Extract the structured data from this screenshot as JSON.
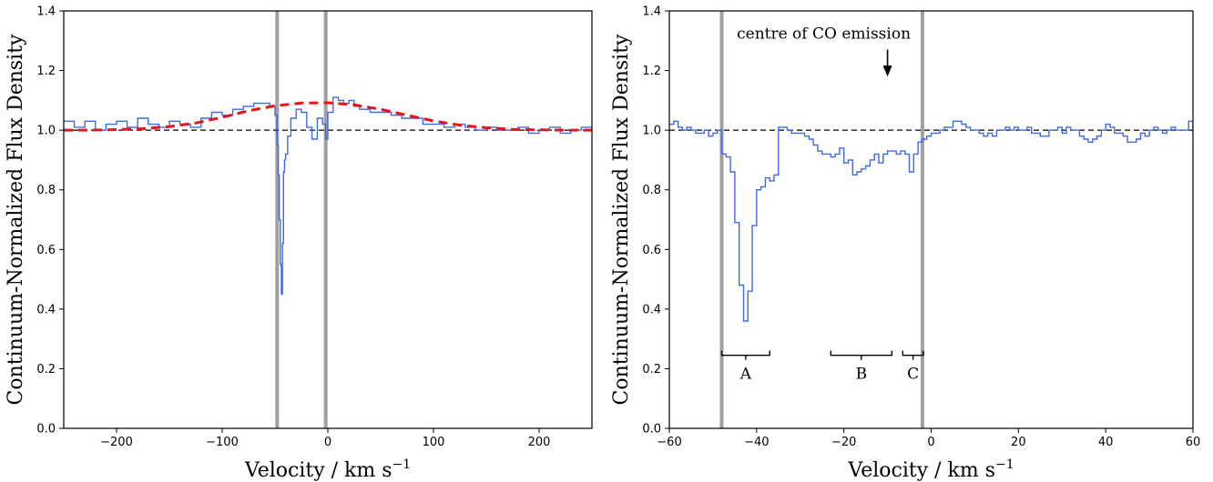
{
  "chart_data": [
    {
      "type": "line",
      "xlabel": "Velocity / km s",
      "xlabel_sup": "−1",
      "ylabel": "Continuum-Normalized Flux Density",
      "xlim": [
        -250,
        250
      ],
      "ylim": [
        0.0,
        1.4
      ],
      "xticks": [
        -200,
        -100,
        0,
        100,
        200
      ],
      "xtick_labels": [
        "−200",
        "−100",
        "0",
        "100",
        "200"
      ],
      "yticks": [
        0.0,
        0.2,
        0.4,
        0.6,
        0.8,
        1.0,
        1.2,
        1.4
      ],
      "ytick_labels": [
        "0.0",
        "0.2",
        "0.4",
        "0.6",
        "0.8",
        "1.0",
        "1.2",
        "1.4"
      ],
      "grid": false,
      "colors": {
        "spectrum": "#4169e1",
        "fit": "#e8141c",
        "reference": "#000000",
        "vertical_lines": "#a0a0a0"
      },
      "continuum_level": 1.0,
      "vertical_lines": [
        -48,
        -2
      ],
      "series": [
        {
          "style": "step",
          "x": [
            -250,
            -240,
            -230,
            -220,
            -210,
            -200,
            -190,
            -180,
            -170,
            -160,
            -150,
            -140,
            -130,
            -120,
            -110,
            -100,
            -90,
            -80,
            -70,
            -60,
            -55,
            -50,
            -48,
            -47,
            -46,
            -45,
            -44,
            -43,
            -42,
            -41,
            -40,
            -38,
            -35,
            -30,
            -25,
            -20,
            -15,
            -10,
            -5,
            -2,
            0,
            5,
            10,
            15,
            20,
            25,
            30,
            40,
            50,
            60,
            70,
            80,
            90,
            100,
            110,
            120,
            130,
            140,
            150,
            160,
            170,
            180,
            190,
            200,
            210,
            220,
            230,
            240,
            250
          ],
          "y": [
            1.03,
            1.01,
            1.03,
            1.0,
            1.02,
            1.03,
            1.01,
            1.04,
            1.02,
            1.01,
            1.03,
            1.02,
            1.01,
            1.04,
            1.06,
            1.05,
            1.07,
            1.08,
            1.09,
            1.09,
            1.08,
            1.05,
            0.95,
            0.85,
            0.7,
            0.55,
            0.45,
            0.62,
            0.86,
            0.9,
            0.92,
            0.98,
            1.04,
            1.07,
            1.06,
            1.01,
            0.97,
            1.04,
            1.02,
            0.97,
            1.06,
            1.11,
            1.1,
            1.09,
            1.1,
            1.08,
            1.07,
            1.06,
            1.06,
            1.05,
            1.04,
            1.04,
            1.02,
            1.02,
            1.01,
            1.02,
            1.01,
            1.0,
            1.01,
            1.0,
            1.0,
            1.01,
            0.99,
            1.0,
            1.01,
            0.99,
            1.0,
            1.01,
            1.0
          ]
        },
        {
          "style": "dashed",
          "x": [
            -250,
            -225,
            -200,
            -175,
            -150,
            -125,
            -100,
            -75,
            -50,
            -25,
            0,
            25,
            50,
            75,
            100,
            125,
            150,
            175,
            200,
            225,
            250
          ],
          "y": [
            1.0,
            1.0,
            1.002,
            1.005,
            1.012,
            1.024,
            1.043,
            1.065,
            1.082,
            1.091,
            1.092,
            1.085,
            1.07,
            1.05,
            1.031,
            1.017,
            1.008,
            1.003,
            1.001,
            1.0,
            1.0
          ]
        }
      ]
    },
    {
      "type": "line",
      "xlabel": "Velocity / km s",
      "xlabel_sup": "−1",
      "ylabel": "Continuum-Normalized Flux Density",
      "xlim": [
        -60,
        60
      ],
      "ylim": [
        0.0,
        1.4
      ],
      "xticks": [
        -60,
        -40,
        -20,
        0,
        20,
        40,
        60
      ],
      "xtick_labels": [
        "−60",
        "−40",
        "−20",
        "0",
        "20",
        "40",
        "60"
      ],
      "yticks": [
        0.0,
        0.2,
        0.4,
        0.6,
        0.8,
        1.0,
        1.2,
        1.4
      ],
      "ytick_labels": [
        "0.0",
        "0.2",
        "0.4",
        "0.6",
        "0.8",
        "1.0",
        "1.2",
        "1.4"
      ],
      "grid": false,
      "continuum_level": 1.0,
      "vertical_lines": [
        -48,
        -2
      ],
      "annotation": {
        "text": "centre of CO emission",
        "arrow_x": -10,
        "arrow_from_y": 1.27,
        "arrow_to_y": 1.18
      },
      "regions": [
        {
          "label": "A",
          "x0": -48,
          "x1": -37,
          "y": 0.245
        },
        {
          "label": "B",
          "x0": -23,
          "x1": -9,
          "y": 0.245
        },
        {
          "label": "C",
          "x0": -6.5,
          "x1": -1.8,
          "y": 0.245
        }
      ],
      "series": [
        {
          "style": "step",
          "x": [
            -60,
            -59,
            -58,
            -57,
            -56,
            -55,
            -54,
            -53,
            -52,
            -51,
            -50,
            -49,
            -48,
            -47,
            -46,
            -45,
            -44,
            -43,
            -42,
            -41,
            -40,
            -39,
            -38,
            -37,
            -36,
            -35,
            -34,
            -33,
            -32,
            -31,
            -30,
            -29,
            -28,
            -27,
            -26,
            -25,
            -24,
            -23,
            -22,
            -21,
            -20,
            -19,
            -18,
            -17,
            -16,
            -15,
            -14,
            -13,
            -12,
            -11,
            -10,
            -9,
            -8,
            -7,
            -6,
            -5,
            -4,
            -3,
            -2,
            -1,
            0,
            1,
            2,
            3,
            4,
            5,
            6,
            7,
            8,
            9,
            10,
            11,
            12,
            13,
            14,
            15,
            16,
            17,
            18,
            19,
            20,
            21,
            22,
            23,
            24,
            25,
            26,
            27,
            28,
            29,
            30,
            31,
            32,
            33,
            34,
            35,
            36,
            37,
            38,
            39,
            40,
            41,
            42,
            43,
            44,
            45,
            46,
            47,
            48,
            49,
            50,
            51,
            52,
            53,
            54,
            55,
            56,
            57,
            58,
            59,
            60
          ],
          "y": [
            1.02,
            1.03,
            1.01,
            1.0,
            1.01,
            1.0,
            0.99,
            0.99,
            1.0,
            0.98,
            0.99,
            1.0,
            0.92,
            0.91,
            0.86,
            0.69,
            0.48,
            0.36,
            0.46,
            0.68,
            0.8,
            0.81,
            0.84,
            0.83,
            0.85,
            1.01,
            1.01,
            1.0,
            0.99,
            0.99,
            0.99,
            0.98,
            0.97,
            0.95,
            0.93,
            0.92,
            0.92,
            0.91,
            0.92,
            0.94,
            0.89,
            0.9,
            0.85,
            0.86,
            0.87,
            0.88,
            0.9,
            0.92,
            0.89,
            0.92,
            0.93,
            0.93,
            0.92,
            0.93,
            0.92,
            0.86,
            0.92,
            0.96,
            0.97,
            0.98,
            0.99,
            0.99,
            1.0,
            1.01,
            1.01,
            1.03,
            1.03,
            1.02,
            1.01,
            1.0,
            1.0,
            0.99,
            0.98,
            0.99,
            0.98,
            1.0,
            1.0,
            1.01,
            1.0,
            1.01,
            1.0,
            1.0,
            1.01,
            0.99,
            0.99,
            0.98,
            0.98,
            1.0,
            1.0,
            1.01,
            0.99,
            1.01,
            1.0,
            1.0,
            0.98,
            0.97,
            0.96,
            0.97,
            0.98,
            1.0,
            1.02,
            1.01,
            0.99,
            0.99,
            0.98,
            0.96,
            0.96,
            0.97,
            0.99,
            0.98,
            1.0,
            1.01,
            1.0,
            0.99,
            1.0,
            1.01,
            1.0,
            1.0,
            1.0,
            1.03,
            0.99
          ]
        }
      ]
    }
  ]
}
